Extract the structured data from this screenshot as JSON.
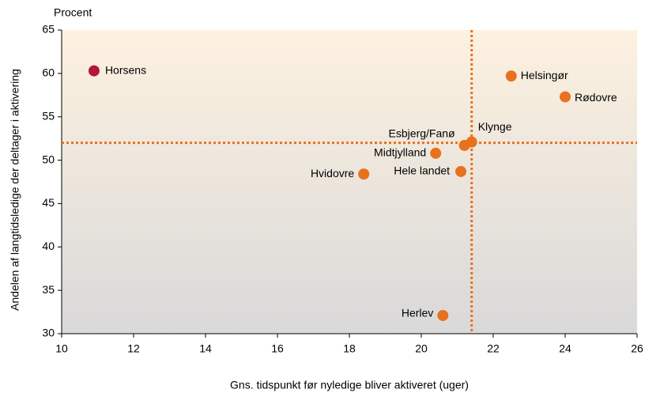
{
  "chart_data": {
    "type": "scatter",
    "y_unit_label": "Procent",
    "x_label": "Gns. tidspunkt før nyledige bliver aktiveret (uger)",
    "y_label": "Andelen af langtidsledige der deltager i aktivering",
    "labels": [
      "Horsens",
      "Helsingør",
      "Rødovre",
      "Klynge",
      "Esbjerg/Fanø",
      "Midtjylland",
      "Hele landet",
      "Hvidovre",
      "Herlev"
    ],
    "x": [
      10.9,
      22.5,
      24.0,
      21.4,
      21.2,
      20.4,
      21.1,
      18.4,
      20.6
    ],
    "values": [
      60.3,
      59.7,
      57.3,
      52.1,
      51.7,
      50.8,
      48.7,
      48.4,
      32.1
    ],
    "colors": [
      "#b5163a",
      "#e8711e",
      "#e8711e",
      "#e8711e",
      "#e8711e",
      "#e8711e",
      "#e8711e",
      "#e8711e",
      "#e8711e"
    ],
    "reference_x": 21.4,
    "reference_y": 52.0,
    "reference_color": "#e8711e",
    "xlim": [
      10,
      26
    ],
    "xticks": [
      10,
      12,
      14,
      16,
      18,
      20,
      22,
      24,
      26
    ],
    "ylim": [
      30,
      65
    ],
    "yticks": [
      30,
      35,
      40,
      45,
      50,
      55,
      60,
      65
    ]
  }
}
